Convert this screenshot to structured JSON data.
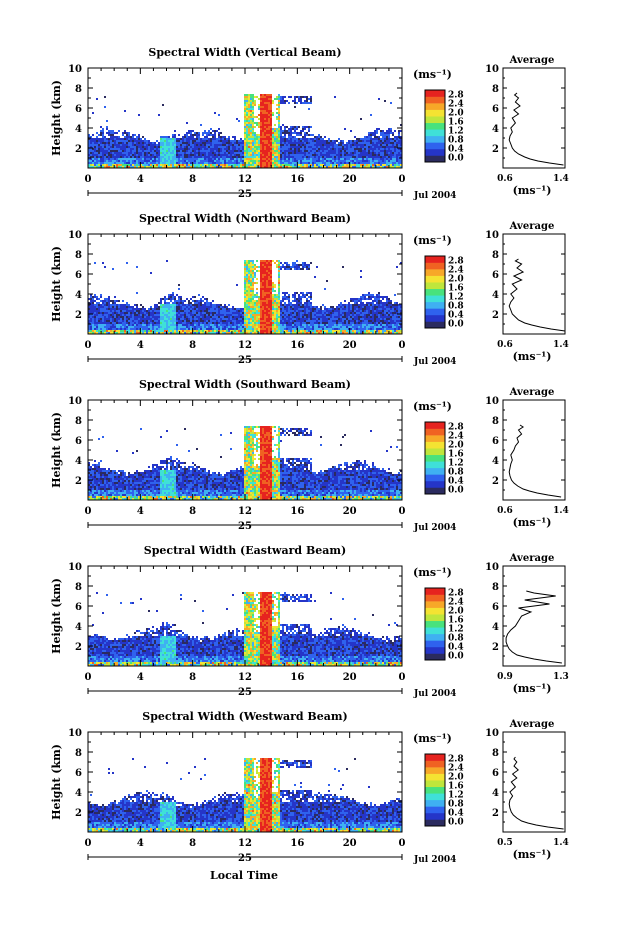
{
  "date_label": "Jul 2004",
  "day_label": "25",
  "footer_xlabel": "Local Time",
  "colorbar_title": "(ms⁻¹)",
  "colorbar_ticks": [
    "0.0",
    "0.4",
    "0.8",
    "1.2",
    "1.6",
    "2.0",
    "2.4",
    "2.8"
  ],
  "colors": {
    "scale": [
      "#2b2b5f",
      "#2535c8",
      "#2f62ee",
      "#3fb0f2",
      "#3fe0d8",
      "#48e27d",
      "#bfe63c",
      "#f4e332",
      "#f7a828",
      "#f06222",
      "#e6231f"
    ]
  },
  "chart_data": [
    {
      "type": "heatmap",
      "title": "Spectral Width (Vertical Beam)",
      "xlabel": "",
      "ylabel": "Height (km)",
      "xlim": [
        0,
        24
      ],
      "ylim": [
        0,
        10
      ],
      "xticks": [
        "0",
        "4",
        "8",
        "12",
        "16",
        "20",
        "0"
      ],
      "yticks": [
        "2",
        "4",
        "6",
        "8",
        "10"
      ],
      "colorbar": {
        "label": "(ms⁻¹)",
        "range": [
          0,
          2.8
        ]
      },
      "profile": {
        "title": "Average",
        "xlabel": "(ms⁻¹)",
        "xlim": [
          0.6,
          1.4
        ],
        "xticks": [
          "0.6",
          "1.4"
        ],
        "x": [
          1.38,
          1.2,
          1.05,
          0.95,
          0.88,
          0.8,
          0.75,
          0.72,
          0.7,
          0.68,
          0.69,
          0.72,
          0.7,
          0.76,
          0.72,
          0.8,
          0.74,
          0.82,
          0.76,
          0.8,
          0.75,
          0.78
        ],
        "y": [
          0.3,
          0.5,
          0.7,
          0.9,
          1.1,
          1.4,
          1.7,
          2.0,
          2.4,
          2.8,
          3.2,
          3.6,
          4.0,
          4.5,
          5.0,
          5.4,
          5.8,
          6.2,
          6.6,
          7.0,
          7.3,
          7.5
        ]
      }
    },
    {
      "type": "heatmap",
      "title": "Spectral Width (Northward Beam)",
      "xlabel": "",
      "ylabel": "Height (km)",
      "xlim": [
        0,
        24
      ],
      "ylim": [
        0,
        10
      ],
      "xticks": [
        "0",
        "4",
        "8",
        "12",
        "16",
        "20",
        "0"
      ],
      "yticks": [
        "2",
        "4",
        "6",
        "8",
        "10"
      ],
      "colorbar": {
        "label": "(ms⁻¹)",
        "range": [
          0,
          2.8
        ]
      },
      "profile": {
        "title": "Average",
        "xlabel": "(ms⁻¹)",
        "xlim": [
          0.6,
          1.4
        ],
        "xticks": [
          "0.6",
          "1.4"
        ],
        "x": [
          1.4,
          1.22,
          1.08,
          0.97,
          0.88,
          0.8,
          0.76,
          0.72,
          0.7,
          0.68,
          0.7,
          0.74,
          0.7,
          0.78,
          0.72,
          0.84,
          0.74,
          0.86,
          0.78,
          0.84,
          0.76,
          0.8
        ],
        "y": [
          0.3,
          0.5,
          0.7,
          0.9,
          1.1,
          1.4,
          1.7,
          2.0,
          2.4,
          2.8,
          3.2,
          3.6,
          4.0,
          4.5,
          5.0,
          5.4,
          5.8,
          6.2,
          6.6,
          7.0,
          7.3,
          7.5
        ]
      }
    },
    {
      "type": "heatmap",
      "title": "Spectral Width (Southward Beam)",
      "xlabel": "",
      "ylabel": "Height (km)",
      "xlim": [
        0,
        24
      ],
      "ylim": [
        0,
        10
      ],
      "xticks": [
        "0",
        "4",
        "8",
        "12",
        "16",
        "20",
        "0"
      ],
      "yticks": [
        "2",
        "4",
        "6",
        "8",
        "10"
      ],
      "colorbar": {
        "label": "(ms⁻¹)",
        "range": [
          0,
          2.8
        ]
      },
      "profile": {
        "title": "Average",
        "xlabel": "(ms⁻¹)",
        "xlim": [
          0.6,
          1.4
        ],
        "xticks": [
          "0.6",
          "1.4"
        ],
        "x": [
          1.35,
          1.18,
          1.04,
          0.94,
          0.86,
          0.79,
          0.74,
          0.71,
          0.69,
          0.68,
          0.69,
          0.7,
          0.72,
          0.7,
          0.74,
          0.76,
          0.8,
          0.78,
          0.84,
          0.8,
          0.86,
          0.82
        ],
        "y": [
          0.3,
          0.5,
          0.7,
          0.9,
          1.1,
          1.4,
          1.7,
          2.0,
          2.4,
          2.8,
          3.2,
          3.6,
          4.0,
          4.5,
          5.0,
          5.4,
          5.8,
          6.2,
          6.6,
          7.0,
          7.3,
          7.5
        ]
      }
    },
    {
      "type": "heatmap",
      "title": "Spectral Width (Eastward Beam)",
      "xlabel": "",
      "ylabel": "Height (km)",
      "xlim": [
        0,
        24
      ],
      "ylim": [
        0,
        10
      ],
      "xticks": [
        "0",
        "4",
        "8",
        "12",
        "16",
        "20",
        "0"
      ],
      "yticks": [
        "2",
        "4",
        "6",
        "8",
        "10"
      ],
      "colorbar": {
        "label": "(ms⁻¹)",
        "range": [
          0,
          2.8
        ]
      },
      "profile": {
        "title": "Average",
        "xlabel": "(ms⁻¹)",
        "xlim": [
          0.9,
          1.3
        ],
        "xticks": [
          "0.9",
          "1.3"
        ],
        "x": [
          1.28,
          1.18,
          1.1,
          1.04,
          0.99,
          0.96,
          0.94,
          0.93,
          0.92,
          0.92,
          0.93,
          0.95,
          0.98,
          1.0,
          1.02,
          1.08,
          1.0,
          1.2,
          1.04,
          1.24,
          1.1,
          1.05
        ],
        "y": [
          0.3,
          0.5,
          0.7,
          0.9,
          1.1,
          1.4,
          1.7,
          2.0,
          2.4,
          2.8,
          3.2,
          3.6,
          4.0,
          4.5,
          5.0,
          5.4,
          5.8,
          6.2,
          6.6,
          7.0,
          7.3,
          7.5
        ]
      }
    },
    {
      "type": "heatmap",
      "title": "Spectral Width (Westward Beam)",
      "xlabel": "",
      "ylabel": "Height (km)",
      "xlim": [
        0,
        24
      ],
      "ylim": [
        0,
        10
      ],
      "xticks": [
        "0",
        "4",
        "8",
        "12",
        "16",
        "20",
        "0"
      ],
      "yticks": [
        "2",
        "4",
        "6",
        "8",
        "10"
      ],
      "colorbar": {
        "label": "(ms⁻¹)",
        "range": [
          0,
          2.8
        ]
      },
      "profile": {
        "title": "Average",
        "xlabel": "(ms⁻¹)",
        "xlim": [
          0.5,
          1.4
        ],
        "xticks": [
          "0.5",
          "1.4"
        ],
        "x": [
          1.38,
          1.15,
          0.98,
          0.86,
          0.77,
          0.7,
          0.65,
          0.62,
          0.6,
          0.59,
          0.6,
          0.64,
          0.6,
          0.68,
          0.62,
          0.7,
          0.64,
          0.72,
          0.66,
          0.7,
          0.66,
          0.68
        ],
        "y": [
          0.3,
          0.5,
          0.7,
          0.9,
          1.1,
          1.4,
          1.7,
          2.0,
          2.4,
          2.8,
          3.2,
          3.6,
          4.0,
          4.5,
          5.0,
          5.4,
          5.8,
          6.2,
          6.6,
          7.0,
          7.3,
          7.5
        ]
      }
    }
  ]
}
